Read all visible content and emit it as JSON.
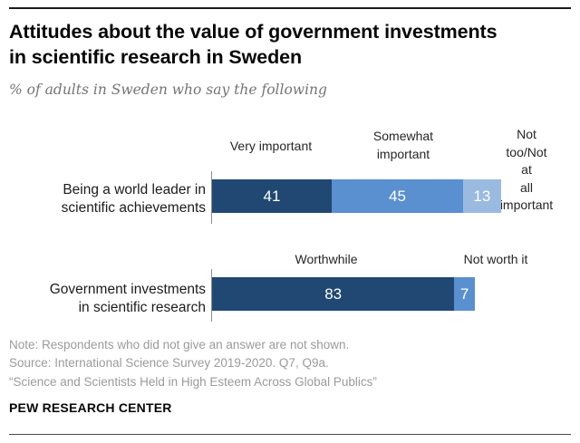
{
  "page": {
    "title": "Attitudes about the value of government investments\nin scientific research in Sweden",
    "subtitle": "% of adults in Sweden who say the following",
    "note": "Note: Respondents who did not give an answer are not shown.",
    "source": "Source: International Science Survey 2019-2020. Q7, Q9a.",
    "report_title": "“Science and Scientists Held in High Esteem Across Global Publics”",
    "brand": "PEW RESEARCH CENTER"
  },
  "colors": {
    "dark_blue": "#204872",
    "medium_blue": "#5a8fd0",
    "light_blue": "#9bbae0"
  },
  "chart_data": [
    {
      "type": "bar",
      "subtype": "horizontal-stacked",
      "row_label": "Being a world leader in\nscientific achievements",
      "categories": [
        "Very important",
        "Somewhat important",
        "Not too/Not at all important"
      ],
      "legend": [
        "Very important",
        "Somewhat\nimportant",
        "Not too/Not at\nall important"
      ],
      "values": [
        41,
        45,
        13
      ],
      "colors": [
        "#204872",
        "#5a8fd0",
        "#9bbae0"
      ],
      "unit": "percent",
      "xlim": [
        0,
        100
      ],
      "legend_position": "above-segments"
    },
    {
      "type": "bar",
      "subtype": "horizontal-stacked",
      "row_label": "Government investments\nin scientific research",
      "categories": [
        "Worthwhile",
        "Not worth it"
      ],
      "legend": [
        "Worthwhile",
        "Not worth it"
      ],
      "values": [
        83,
        7
      ],
      "colors": [
        "#204872",
        "#5a8fd0"
      ],
      "unit": "percent",
      "xlim": [
        0,
        100
      ],
      "legend_position": "above-segments"
    }
  ]
}
